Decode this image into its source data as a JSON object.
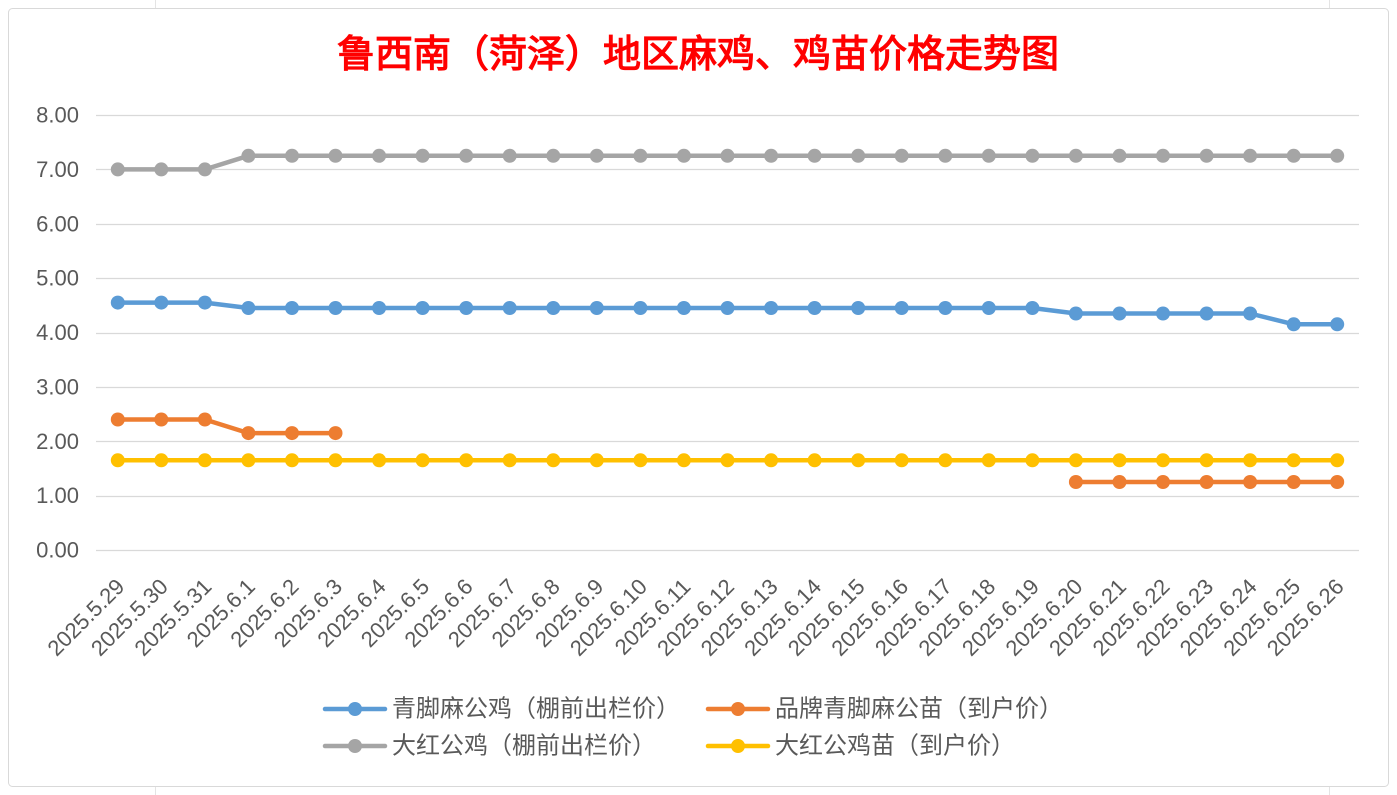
{
  "chart_data": {
    "type": "line",
    "title": "鲁西南（菏泽）地区麻鸡、鸡苗价格走势图",
    "categories": [
      "2025.5.29",
      "2025.5.30",
      "2025.5.31",
      "2025.6.1",
      "2025.6.2",
      "2025.6.3",
      "2025.6.4",
      "2025.6.5",
      "2025.6.6",
      "2025.6.7",
      "2025.6.8",
      "2025.6.9",
      "2025.6.10",
      "2025.6.11",
      "2025.6.12",
      "2025.6.13",
      "2025.6.14",
      "2025.6.15",
      "2025.6.16",
      "2025.6.17",
      "2025.6.18",
      "2025.6.19",
      "2025.6.20",
      "2025.6.21",
      "2025.6.22",
      "2025.6.23",
      "2025.6.24",
      "2025.6.25",
      "2025.6.26"
    ],
    "ylim": [
      0,
      8
    ],
    "yticks": [
      "0.00",
      "1.00",
      "2.00",
      "3.00",
      "4.00",
      "5.00",
      "6.00",
      "7.00",
      "8.00"
    ],
    "grid": true,
    "legend_position": "bottom",
    "colors": {
      "title": "#FF0000",
      "gridline": "#D9D9D9",
      "axis_text": "#595959",
      "chart_border": "#D9D9D9"
    },
    "series": [
      {
        "name": "青脚麻公鸡（棚前出栏价）",
        "color": "#5B9BD5",
        "values": [
          4.55,
          4.55,
          4.55,
          4.45,
          4.45,
          4.45,
          4.45,
          4.45,
          4.45,
          4.45,
          4.45,
          4.45,
          4.45,
          4.45,
          4.45,
          4.45,
          4.45,
          4.45,
          4.45,
          4.45,
          4.45,
          4.45,
          4.35,
          4.35,
          4.35,
          4.35,
          4.35,
          4.15,
          4.15
        ]
      },
      {
        "name": "品牌青脚麻公苗（到户价）",
        "color": "#ED7D31",
        "values": [
          2.4,
          2.4,
          2.4,
          2.15,
          2.15,
          2.15,
          null,
          null,
          null,
          null,
          null,
          null,
          null,
          null,
          null,
          null,
          null,
          null,
          null,
          null,
          null,
          null,
          1.25,
          1.25,
          1.25,
          1.25,
          1.25,
          1.25,
          1.25
        ]
      },
      {
        "name": "大红公鸡（棚前出栏价）",
        "color": "#A5A5A5",
        "values": [
          7.0,
          7.0,
          7.0,
          7.25,
          7.25,
          7.25,
          7.25,
          7.25,
          7.25,
          7.25,
          7.25,
          7.25,
          7.25,
          7.25,
          7.25,
          7.25,
          7.25,
          7.25,
          7.25,
          7.25,
          7.25,
          7.25,
          7.25,
          7.25,
          7.25,
          7.25,
          7.25,
          7.25,
          7.25
        ]
      },
      {
        "name": "大红公鸡苗（到户价）",
        "color": "#FFC000",
        "values": [
          1.65,
          1.65,
          1.65,
          1.65,
          1.65,
          1.65,
          1.65,
          1.65,
          1.65,
          1.65,
          1.65,
          1.65,
          1.65,
          1.65,
          1.65,
          1.65,
          1.65,
          1.65,
          1.65,
          1.65,
          1.65,
          1.65,
          1.65,
          1.65,
          1.65,
          1.65,
          1.65,
          1.65,
          1.65
        ]
      }
    ]
  }
}
